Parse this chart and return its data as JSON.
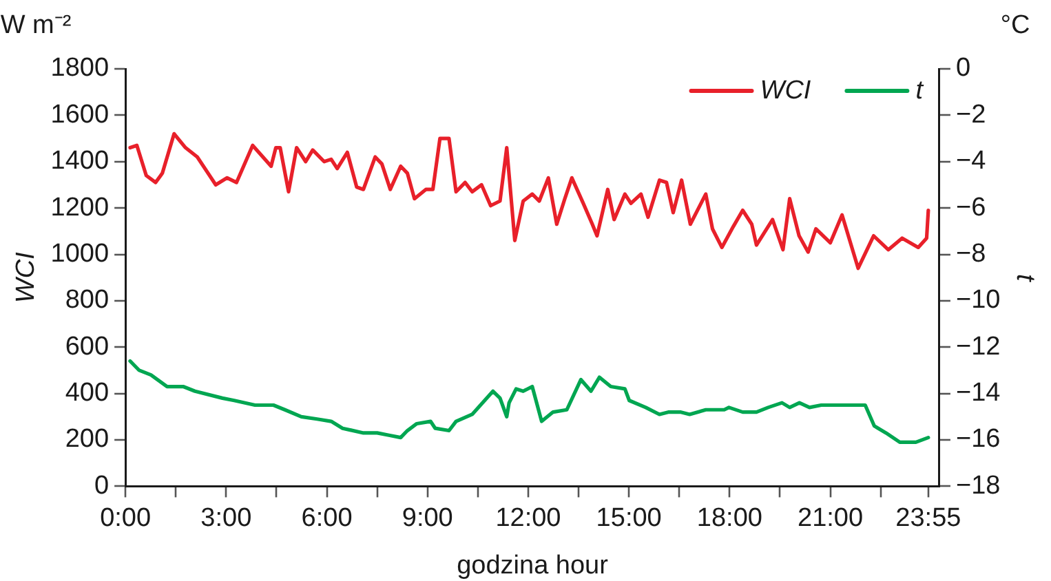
{
  "chart_data": {
    "type": "line",
    "xlabel": "godzina hour",
    "ylabel": "WCI",
    "y2label": "t",
    "annotations": [
      "W m⁻²",
      "°C"
    ],
    "xlim": [
      0,
      24.25
    ],
    "xticks": [
      {
        "value": 0,
        "label": "0:00"
      },
      {
        "value": 1.5,
        "label": null
      },
      {
        "value": 3,
        "label": "3:00"
      },
      {
        "value": 4.5,
        "label": null
      },
      {
        "value": 6,
        "label": "6:00"
      },
      {
        "value": 7.5,
        "label": null
      },
      {
        "value": 9,
        "label": "9:00"
      },
      {
        "value": 10.5,
        "label": null
      },
      {
        "value": 12,
        "label": "12:00"
      },
      {
        "value": 13.5,
        "label": null
      },
      {
        "value": 15,
        "label": "15:00"
      },
      {
        "value": 16.5,
        "label": null
      },
      {
        "value": 18,
        "label": "18:00"
      },
      {
        "value": 19.5,
        "label": null
      },
      {
        "value": 21,
        "label": "21:00"
      },
      {
        "value": 22.5,
        "label": null
      },
      {
        "value": 23.92,
        "label": "23:55"
      }
    ],
    "ylim": [
      0,
      1800
    ],
    "yticks": [
      0,
      200,
      400,
      600,
      800,
      1000,
      1200,
      1400,
      1600,
      1800
    ],
    "y2lim": [
      -18,
      0
    ],
    "y2ticks": [
      {
        "value": -18,
        "label": "−18"
      },
      {
        "value": -16,
        "label": "−16"
      },
      {
        "value": -14,
        "label": "−14"
      },
      {
        "value": -12,
        "label": "−12"
      },
      {
        "value": -10,
        "label": "−10"
      },
      {
        "value": -8,
        "label": "−8"
      },
      {
        "value": -6,
        "label": "−6"
      },
      {
        "value": -4,
        "label": "−4"
      },
      {
        "value": -2,
        "label": "−2"
      },
      0
    ],
    "grid": false,
    "legend": "top right",
    "marker": "none",
    "line_style": "solid",
    "series": [
      {
        "name": "WCI",
        "color": "#e8202a",
        "x": [
          0.14,
          0.34,
          0.62,
          0.9,
          1.1,
          1.45,
          1.79,
          2.14,
          2.69,
          3.03,
          3.31,
          3.79,
          4.34,
          4.48,
          4.61,
          4.86,
          5.1,
          5.37,
          5.58,
          5.92,
          6.13,
          6.31,
          6.61,
          6.89,
          7.09,
          7.44,
          7.64,
          7.89,
          8.2,
          8.4,
          8.61,
          8.95,
          9.16,
          9.37,
          9.64,
          9.85,
          10.12,
          10.33,
          10.61,
          10.88,
          11.16,
          11.36,
          11.6,
          11.85,
          12.12,
          12.33,
          12.6,
          12.85,
          13.09,
          13.3,
          13.64,
          13.91,
          14.05,
          14.37,
          14.56,
          14.88,
          15.06,
          15.36,
          15.57,
          15.91,
          16.12,
          16.32,
          16.57,
          16.83,
          17.29,
          17.49,
          17.77,
          18.11,
          18.39,
          18.66,
          18.8,
          19.28,
          19.59,
          19.79,
          20.07,
          20.34,
          20.57,
          21.0,
          21.35,
          21.83,
          22.29,
          22.73,
          23.14,
          23.62,
          23.87,
          23.92
        ],
        "values": [
          1460,
          1470,
          1340,
          1310,
          1350,
          1520,
          1460,
          1420,
          1300,
          1330,
          1310,
          1470,
          1380,
          1460,
          1460,
          1270,
          1460,
          1400,
          1450,
          1400,
          1410,
          1370,
          1440,
          1290,
          1280,
          1420,
          1390,
          1280,
          1380,
          1350,
          1240,
          1280,
          1280,
          1500,
          1500,
          1270,
          1310,
          1270,
          1300,
          1210,
          1230,
          1460,
          1060,
          1230,
          1260,
          1230,
          1330,
          1130,
          1240,
          1330,
          1220,
          1130,
          1080,
          1280,
          1150,
          1260,
          1220,
          1260,
          1160,
          1320,
          1310,
          1180,
          1320,
          1130,
          1260,
          1110,
          1030,
          1120,
          1190,
          1130,
          1040,
          1150,
          1020,
          1240,
          1080,
          1010,
          1110,
          1050,
          1170,
          940,
          1080,
          1020,
          1070,
          1030,
          1070,
          1190
        ]
      },
      {
        "name": "t",
        "color": "#00a651",
        "axis": "y2",
        "x": [
          0.14,
          0.41,
          0.76,
          1.24,
          1.72,
          2.07,
          2.89,
          3.24,
          3.86,
          4.41,
          4.75,
          5.24,
          5.71,
          6.13,
          6.47,
          7.09,
          7.5,
          7.85,
          8.2,
          8.4,
          8.68,
          9.09,
          9.23,
          9.64,
          9.85,
          10.33,
          10.95,
          11.16,
          11.36,
          11.43,
          11.64,
          11.85,
          12.12,
          12.4,
          12.74,
          13.15,
          13.57,
          13.87,
          14.12,
          14.46,
          14.88,
          15.01,
          15.5,
          15.91,
          16.19,
          16.53,
          16.81,
          17.29,
          17.84,
          17.98,
          18.39,
          18.8,
          19.15,
          19.56,
          19.79,
          20.08,
          20.38,
          20.73,
          22.04,
          22.31,
          22.66,
          23.07,
          23.55,
          23.92
        ],
        "values": [
          -12.6,
          -13.0,
          -13.2,
          -13.7,
          -13.7,
          -13.9,
          -14.2,
          -14.3,
          -14.5,
          -14.5,
          -14.7,
          -15.0,
          -15.1,
          -15.2,
          -15.5,
          -15.7,
          -15.7,
          -15.8,
          -15.9,
          -15.6,
          -15.3,
          -15.2,
          -15.5,
          -15.6,
          -15.2,
          -14.9,
          -13.9,
          -14.2,
          -15.0,
          -14.4,
          -13.8,
          -13.9,
          -13.7,
          -15.2,
          -14.8,
          -14.7,
          -13.4,
          -13.9,
          -13.3,
          -13.7,
          -13.8,
          -14.3,
          -14.6,
          -14.9,
          -14.8,
          -14.8,
          -14.9,
          -14.7,
          -14.7,
          -14.6,
          -14.8,
          -14.8,
          -14.6,
          -14.4,
          -14.6,
          -14.4,
          -14.6,
          -14.5,
          -14.5,
          -15.4,
          -15.7,
          -16.1,
          -16.1,
          -15.9
        ]
      }
    ]
  }
}
